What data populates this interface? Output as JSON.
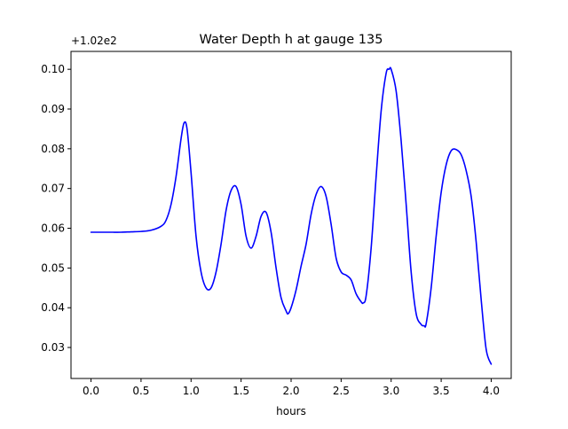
{
  "chart_data": {
    "type": "line",
    "title": "Water Depth h at gauge 135",
    "xlabel": "hours",
    "ylabel": "",
    "y_offset_label": "+1.02e2",
    "xlim": [
      -0.2,
      4.2
    ],
    "ylim": [
      0.0222,
      0.1045
    ],
    "xticks": [
      0.0,
      0.5,
      1.0,
      1.5,
      2.0,
      2.5,
      3.0,
      3.5,
      4.0
    ],
    "xtick_labels": [
      "0.0",
      "0.5",
      "1.0",
      "1.5",
      "2.0",
      "2.5",
      "3.0",
      "3.5",
      "4.0"
    ],
    "yticks": [
      0.03,
      0.04,
      0.05,
      0.06,
      0.07,
      0.08,
      0.09,
      0.1
    ],
    "ytick_labels": [
      "0.03",
      "0.04",
      "0.05",
      "0.06",
      "0.07",
      "0.08",
      "0.09",
      "0.10"
    ],
    "grid": false,
    "legend": "none",
    "series": [
      {
        "color": "#0000ff",
        "x": [
          0.0,
          0.1,
          0.2,
          0.3,
          0.4,
          0.5,
          0.6,
          0.7,
          0.75,
          0.8,
          0.85,
          0.9,
          0.93,
          0.96,
          1.0,
          1.05,
          1.1,
          1.15,
          1.2,
          1.25,
          1.3,
          1.35,
          1.4,
          1.45,
          1.5,
          1.55,
          1.6,
          1.65,
          1.7,
          1.75,
          1.8,
          1.85,
          1.9,
          1.95,
          1.97,
          2.0,
          2.05,
          2.1,
          2.15,
          2.2,
          2.25,
          2.3,
          2.35,
          2.4,
          2.45,
          2.5,
          2.55,
          2.6,
          2.65,
          2.7,
          2.72,
          2.75,
          2.8,
          2.85,
          2.9,
          2.95,
          2.98,
          3.0,
          3.05,
          3.1,
          3.15,
          3.2,
          3.25,
          3.3,
          3.33,
          3.35,
          3.4,
          3.45,
          3.5,
          3.55,
          3.6,
          3.65,
          3.7,
          3.75,
          3.8,
          3.85,
          3.9,
          3.95,
          4.0
        ],
        "y": [
          0.059,
          0.059,
          0.059,
          0.059,
          0.0591,
          0.0592,
          0.0595,
          0.0605,
          0.062,
          0.066,
          0.073,
          0.0825,
          0.0865,
          0.085,
          0.074,
          0.058,
          0.049,
          0.045,
          0.045,
          0.049,
          0.056,
          0.0645,
          0.0695,
          0.0705,
          0.066,
          0.058,
          0.055,
          0.058,
          0.063,
          0.064,
          0.059,
          0.05,
          0.0425,
          0.0392,
          0.0385,
          0.04,
          0.0445,
          0.0505,
          0.056,
          0.0635,
          0.0685,
          0.0705,
          0.068,
          0.061,
          0.0525,
          0.049,
          0.0482,
          0.047,
          0.0435,
          0.0415,
          0.0412,
          0.043,
          0.055,
          0.073,
          0.0895,
          0.099,
          0.1,
          0.1,
          0.0945,
          0.082,
          0.066,
          0.049,
          0.0385,
          0.0358,
          0.0355,
          0.036,
          0.045,
          0.058,
          0.069,
          0.076,
          0.0795,
          0.0798,
          0.0785,
          0.0745,
          0.068,
          0.0565,
          0.042,
          0.0295,
          0.0258
        ]
      }
    ]
  }
}
